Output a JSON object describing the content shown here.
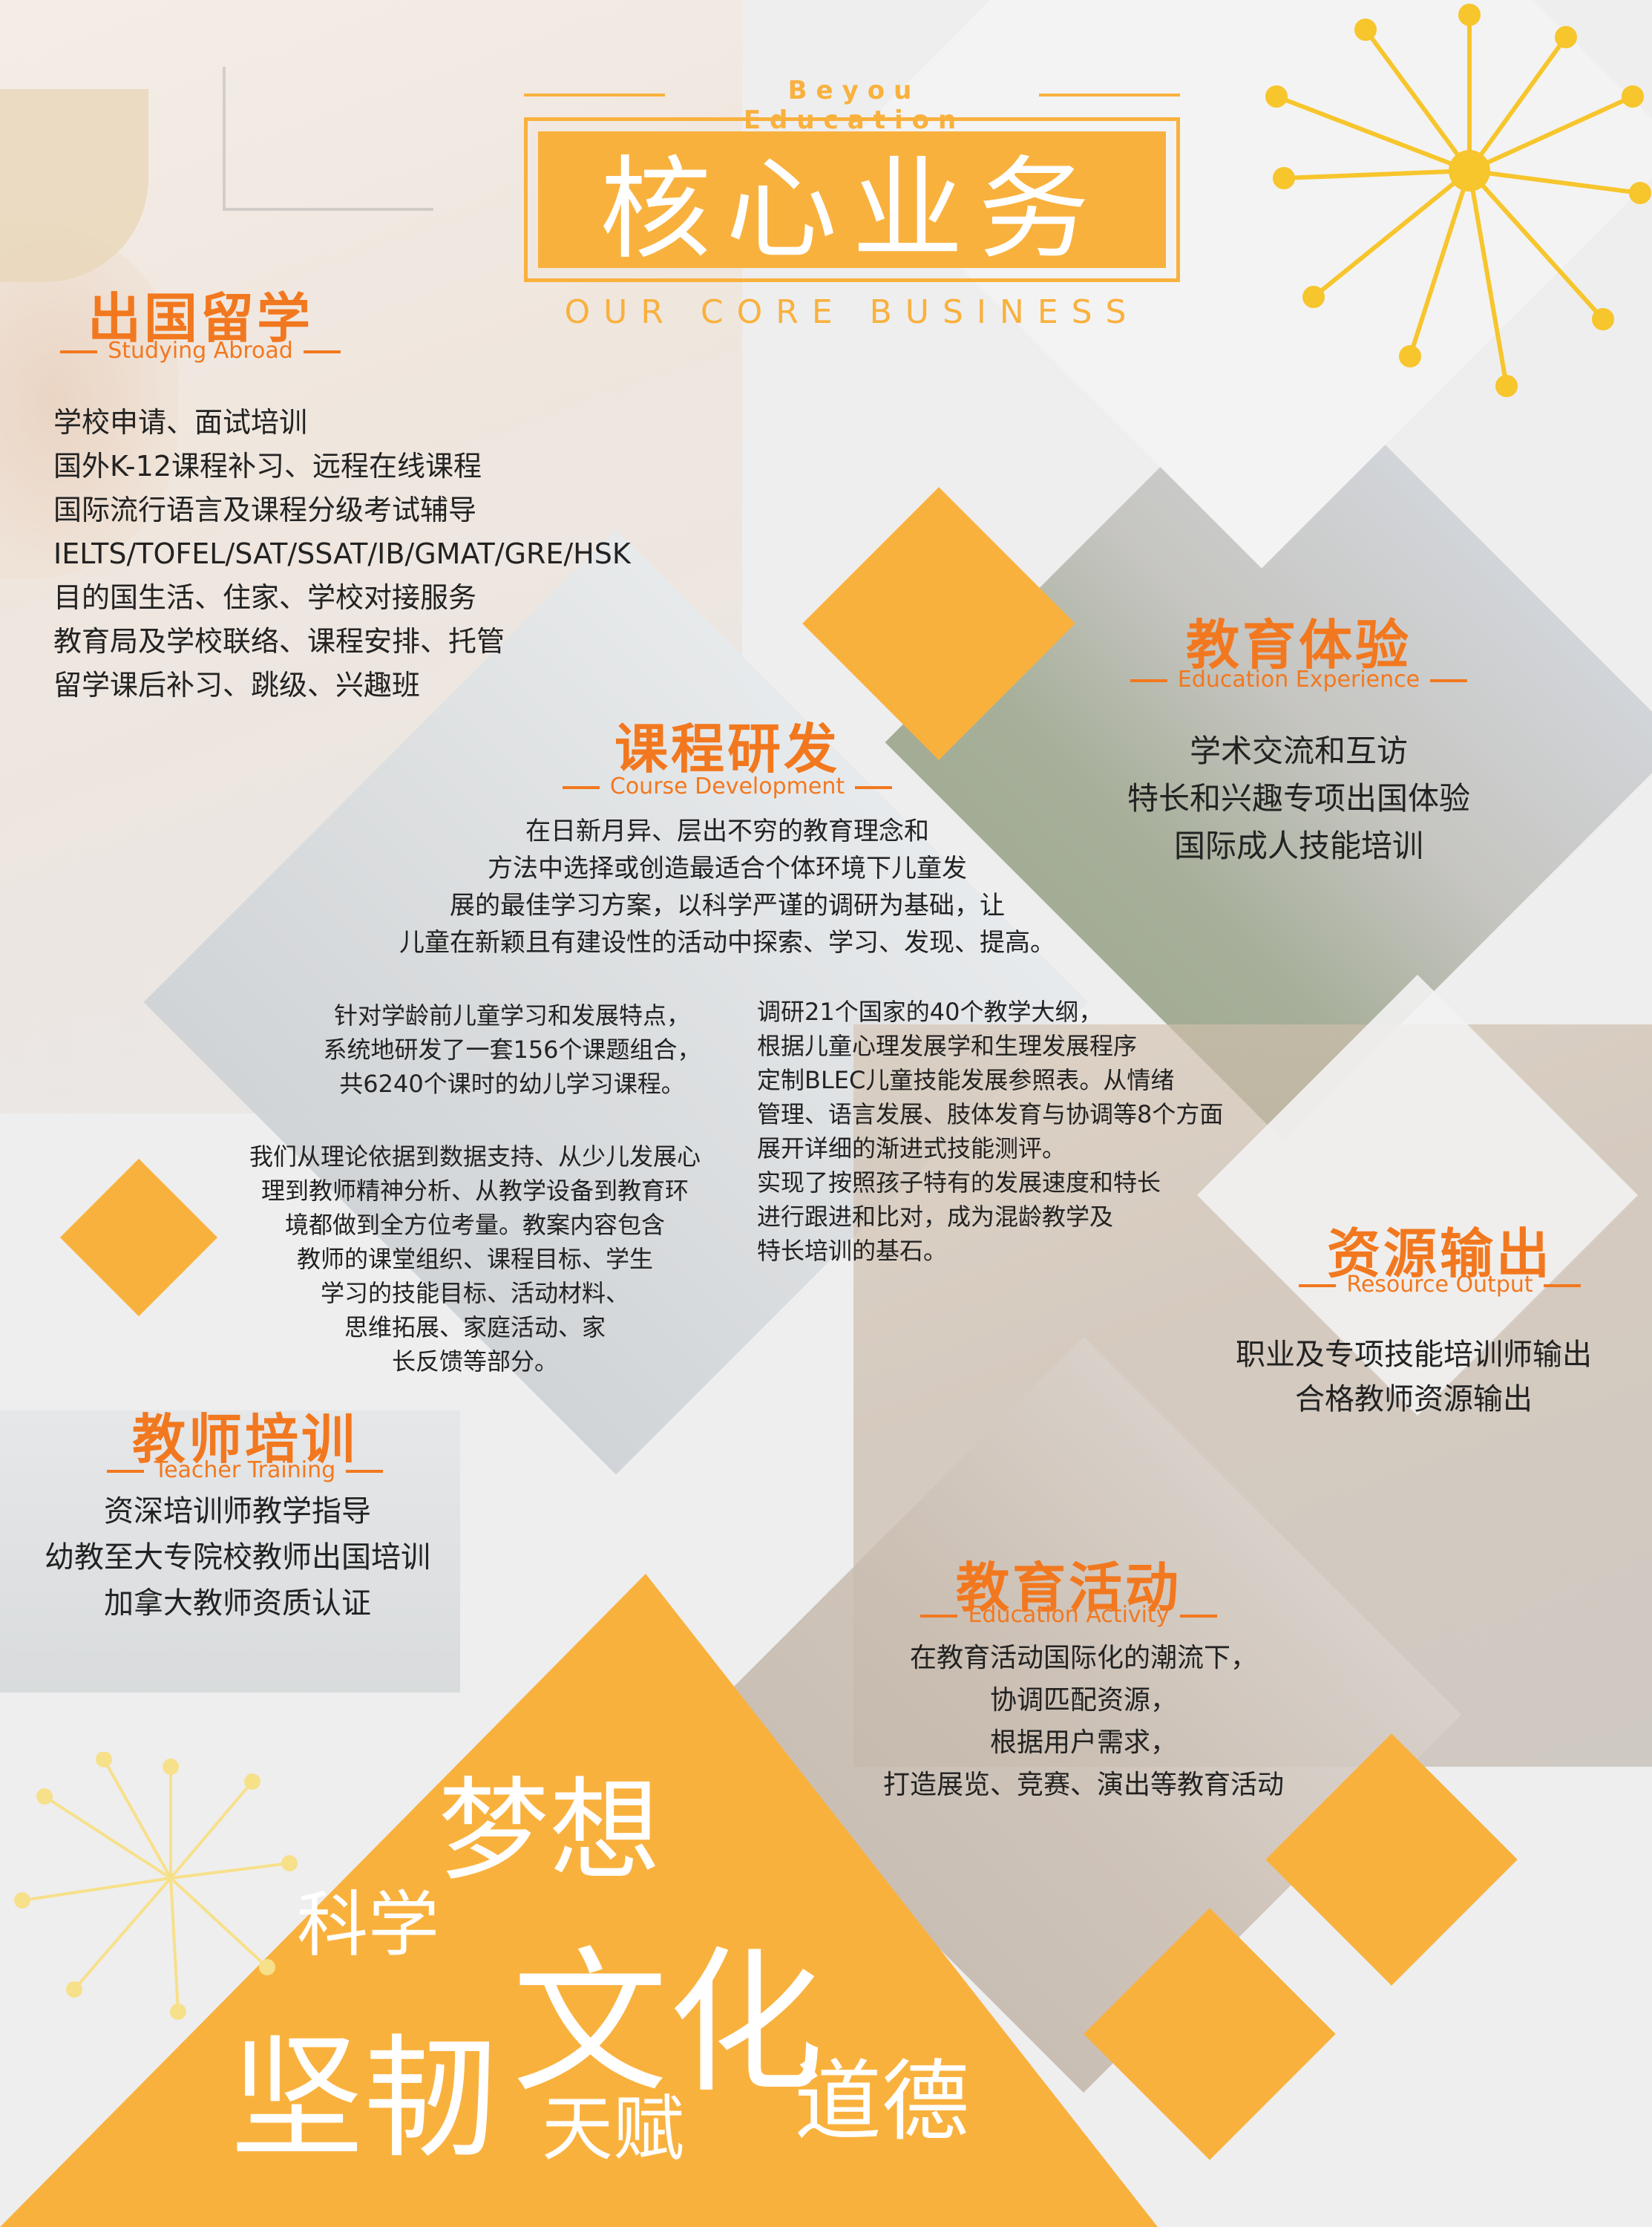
{
  "header": {
    "brand": "Beyou Education",
    "title": "核心业务",
    "subtitle": "OUR CORE BUSINESS"
  },
  "colors": {
    "accent": "#f9b13e",
    "title_orange": "#f2781f"
  },
  "sections": {
    "abroad": {
      "title": "出国留学",
      "subtitle": "Studying Abroad",
      "lines": [
        "学校申请、面试培训",
        "国外K-12课程补习、远程在线课程",
        "国际流行语言及课程分级考试辅导",
        "IELTS/TOFEL/SAT/SSAT/IB/GMAT/GRE/HSK",
        "目的国生活、住家、学校对接服务",
        "教育局及学校联络、课程安排、托管",
        "留学课后补习、跳级、兴趣班"
      ]
    },
    "course": {
      "title": "课程研发",
      "subtitle": "Course Development",
      "intro": [
        "在日新月异、层出不穷的教育理念和",
        "方法中选择或创造最适合个体环境下儿童发",
        "展的最佳学习方案，以科学严谨的调研为基础，让",
        "儿童在新颖且有建设性的活动中探索、学习、发现、提高。"
      ],
      "left1": [
        "针对学龄前儿童学习和发展特点，",
        "系统地研发了一套156个课题组合，",
        "共6240个课时的幼儿学习课程。"
      ],
      "left2": [
        "我们从理论依据到数据支持、从少儿发展心",
        "理到教师精神分析、从教学设备到教育环",
        "境都做到全方位考量。教案内容包含",
        "教师的课堂组织、课程目标、学生",
        "学习的技能目标、活动材料、",
        "思维拓展、家庭活动、家",
        "长反馈等部分。"
      ],
      "right": [
        "调研21个国家的40个教学大纲，",
        "根据儿童心理发展学和生理发展程序",
        "定制BLEC儿童技能发展参照表。从情绪",
        "管理、语言发展、肢体发育与协调等8个方面",
        "展开详细的渐进式技能测评。",
        "实现了按照孩子特有的发展速度和特长",
        "进行跟进和比对，成为混龄教学及",
        "特长培训的基石。"
      ]
    },
    "experience": {
      "title": "教育体验",
      "subtitle": "Education Experience",
      "lines": [
        "学术交流和互访",
        "特长和兴趣专项出国体验",
        "国际成人技能培训"
      ]
    },
    "resource": {
      "title": "资源输出",
      "subtitle": "Resource Output",
      "lines": [
        "职业及专项技能培训师输出",
        "合格教师资源输出"
      ]
    },
    "teacher": {
      "title": "教师培训",
      "subtitle": "Teacher Training",
      "lines": [
        "资深培训师教学指导",
        "幼教至大专院校教师出国培训",
        "加拿大教师资质认证"
      ]
    },
    "activity": {
      "title": "教育活动",
      "subtitle": "Education Activity",
      "lines": [
        "在教育活动国际化的潮流下，",
        "协调匹配资源，",
        "根据用户需求，",
        "打造展览、竞赛、演出等教育活动"
      ]
    }
  },
  "keywords": {
    "dream": "梦想",
    "science": "科学",
    "culture": "文化",
    "tenacity": "坚韧",
    "talent": "天赋",
    "morality": "道德"
  }
}
